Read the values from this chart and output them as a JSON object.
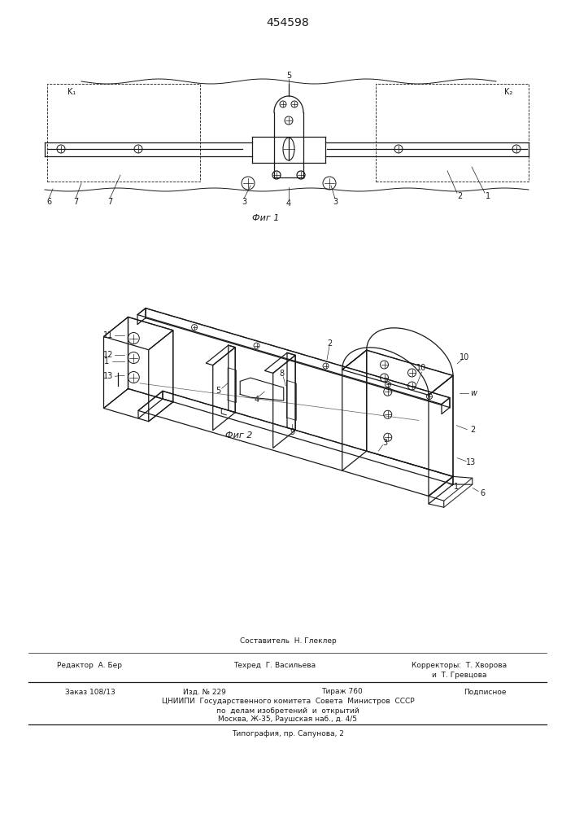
{
  "title": "454598",
  "bg_color": "#ffffff",
  "fig_width": 7.07,
  "fig_height": 10.0,
  "footer": {
    "sestavitel": "Составитель  Н. Глеклер",
    "redaktor": "Редактор  А. Бер",
    "tehred": "Техред  Г. Васильева",
    "korrektory1": "Корректоры:  Т. Хворова",
    "korrektory2": "и  Т. Гревцова",
    "zakaz": "Заказ 108/13",
    "izd": "Изд. № 229",
    "tirazh": "Тираж 760",
    "podpisnoe": "Подписное",
    "tsniipи1": "ЦНИИПИ  Государственного комитета  Совета  Министров  СССР",
    "tsniipи2": "по  делам изобретений  и  открытий",
    "tsniipи3": "Москва, Ж-35, Раушская наб., д. 4/5",
    "tipografiya": "Типография, пр. Сапунова, 2"
  }
}
